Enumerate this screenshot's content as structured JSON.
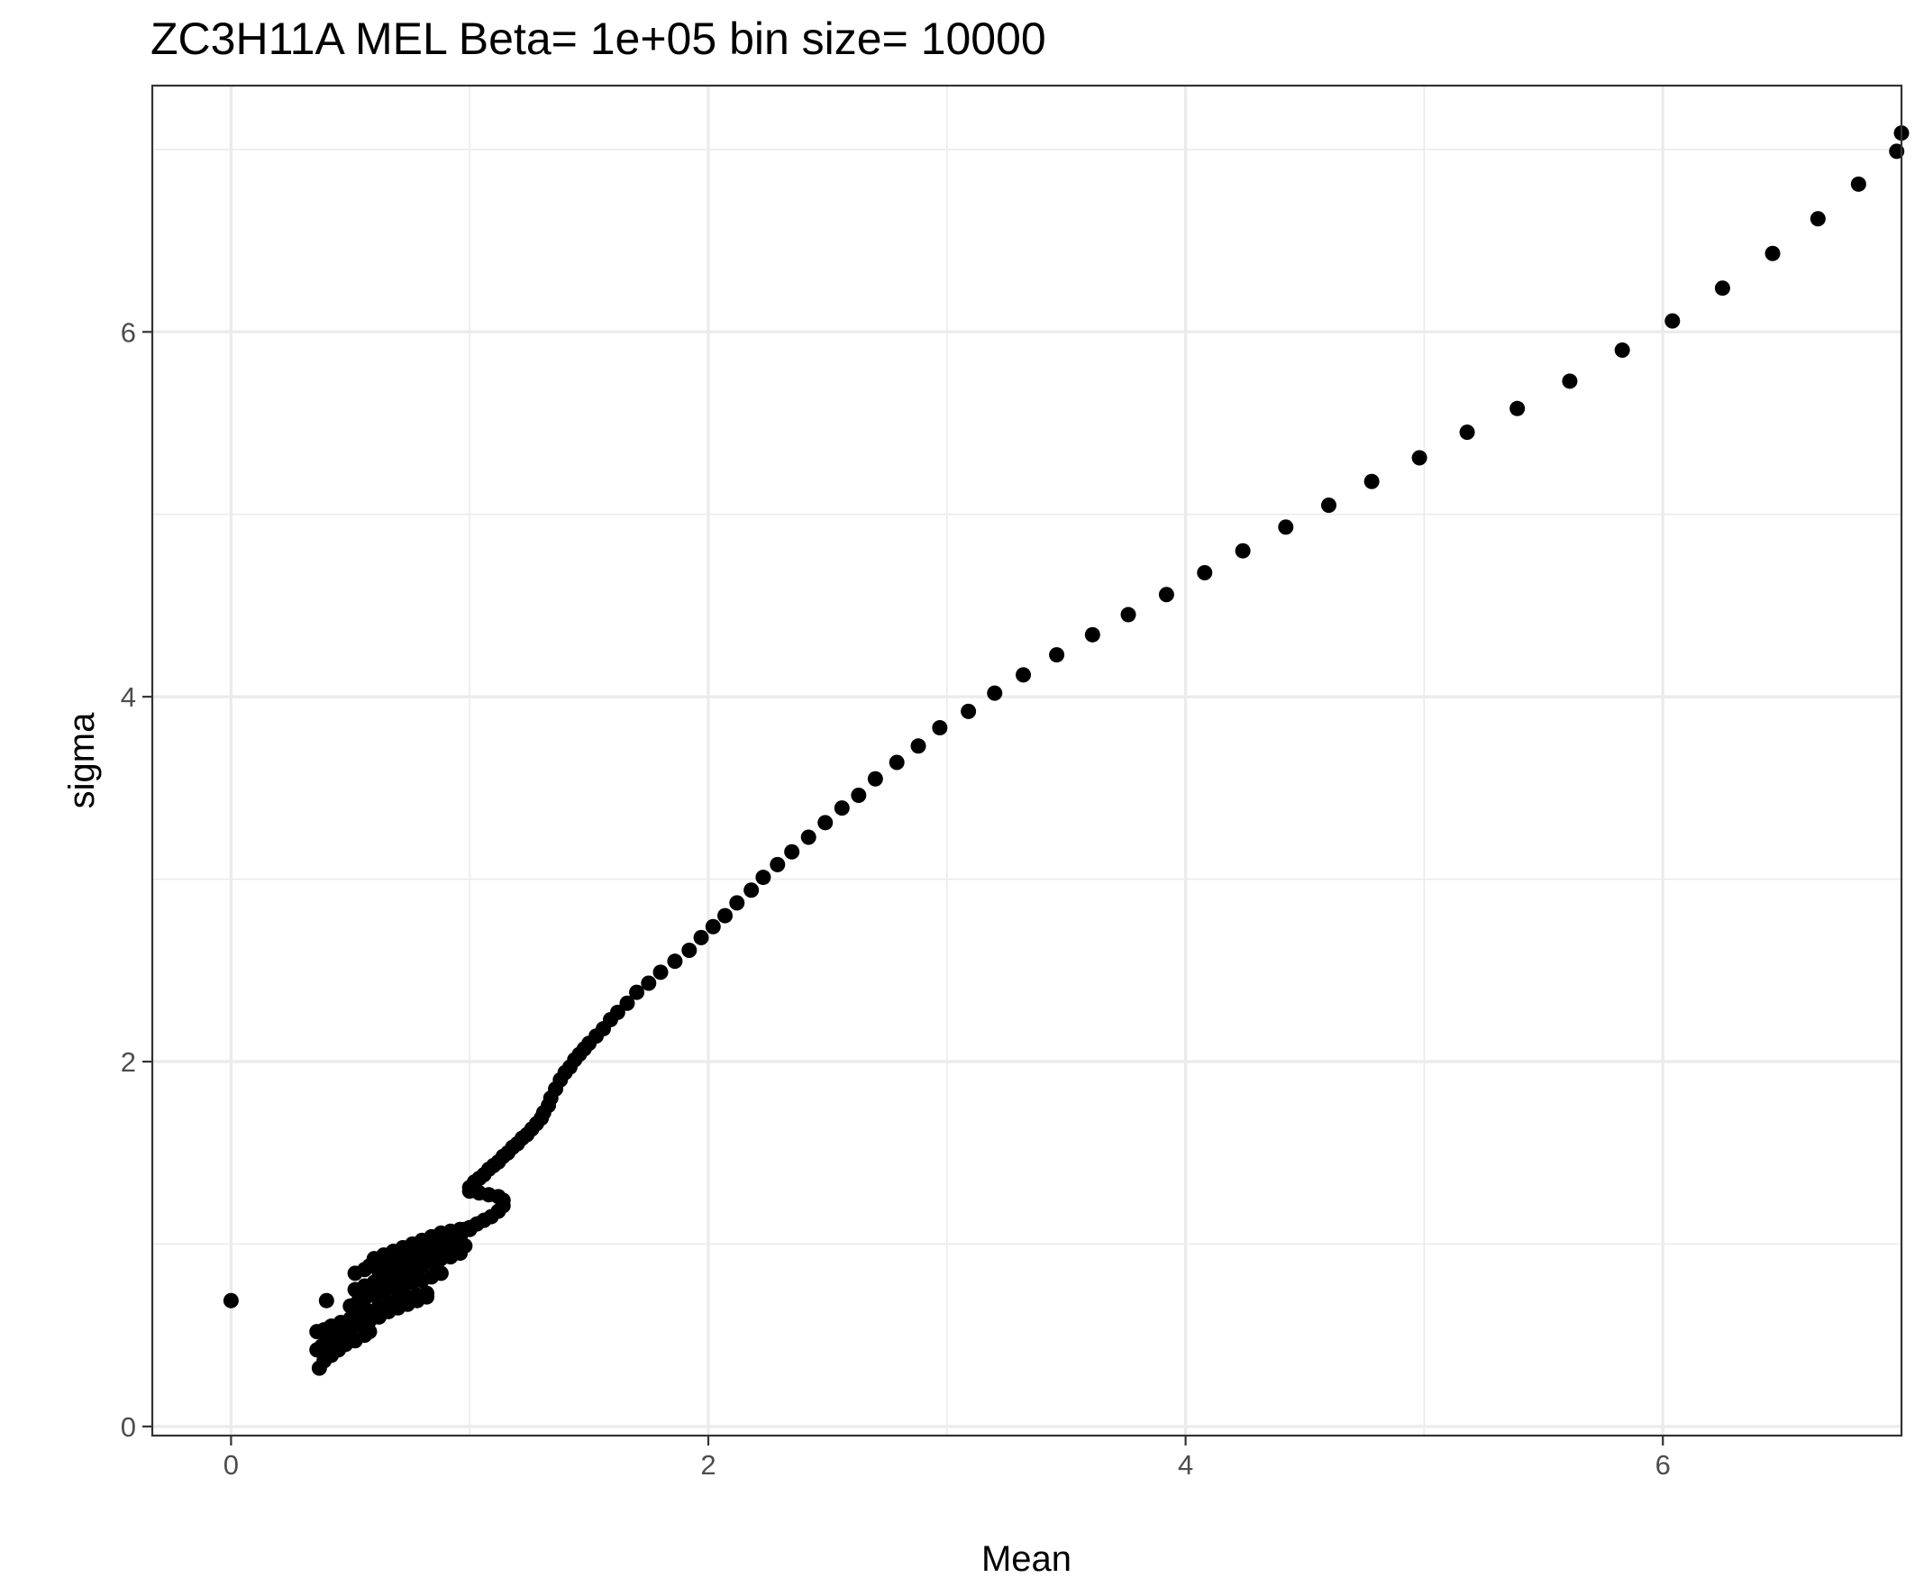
{
  "chart_data": {
    "type": "scatter",
    "title": "ZC3H11A MEL  Beta=  1e+05  bin size=  10000",
    "xlabel": "Mean",
    "ylabel": "sigma",
    "xlim": [
      -0.33,
      7.0
    ],
    "ylim": [
      -0.05,
      7.35
    ],
    "x_ticks": [
      0,
      2,
      4,
      6
    ],
    "y_ticks": [
      0,
      2,
      4,
      6
    ],
    "grid": true,
    "point_color": "#000000",
    "series": [
      {
        "points": [
          [
            0.0,
            0.69
          ],
          [
            0.4,
            0.69
          ],
          [
            0.37,
            0.32
          ],
          [
            0.39,
            0.36
          ],
          [
            0.42,
            0.39
          ],
          [
            0.45,
            0.42
          ],
          [
            0.48,
            0.45
          ],
          [
            0.52,
            0.47
          ],
          [
            0.56,
            0.5
          ],
          [
            0.58,
            0.52
          ],
          [
            0.36,
            0.42
          ],
          [
            0.38,
            0.44
          ],
          [
            0.4,
            0.46
          ],
          [
            0.43,
            0.48
          ],
          [
            0.46,
            0.5
          ],
          [
            0.5,
            0.53
          ],
          [
            0.54,
            0.56
          ],
          [
            0.58,
            0.58
          ],
          [
            0.36,
            0.52
          ],
          [
            0.39,
            0.53
          ],
          [
            0.42,
            0.55
          ],
          [
            0.46,
            0.57
          ],
          [
            0.5,
            0.59
          ],
          [
            0.54,
            0.61
          ],
          [
            0.58,
            0.63
          ],
          [
            0.62,
            0.66
          ],
          [
            0.66,
            0.68
          ],
          [
            0.7,
            0.7
          ],
          [
            0.74,
            0.71
          ],
          [
            0.78,
            0.72
          ],
          [
            0.82,
            0.73
          ],
          [
            0.5,
            0.66
          ],
          [
            0.53,
            0.68
          ],
          [
            0.56,
            0.7
          ],
          [
            0.6,
            0.72
          ],
          [
            0.64,
            0.74
          ],
          [
            0.68,
            0.76
          ],
          [
            0.72,
            0.77
          ],
          [
            0.76,
            0.79
          ],
          [
            0.8,
            0.8
          ],
          [
            0.84,
            0.82
          ],
          [
            0.88,
            0.84
          ],
          [
            0.52,
            0.75
          ],
          [
            0.56,
            0.77
          ],
          [
            0.6,
            0.79
          ],
          [
            0.64,
            0.8
          ],
          [
            0.68,
            0.82
          ],
          [
            0.72,
            0.84
          ],
          [
            0.76,
            0.86
          ],
          [
            0.8,
            0.88
          ],
          [
            0.84,
            0.9
          ],
          [
            0.88,
            0.92
          ],
          [
            0.92,
            0.93
          ],
          [
            0.96,
            0.95
          ],
          [
            0.52,
            0.84
          ],
          [
            0.56,
            0.86
          ],
          [
            0.6,
            0.88
          ],
          [
            0.64,
            0.9
          ],
          [
            0.68,
            0.91
          ],
          [
            0.72,
            0.93
          ],
          [
            0.76,
            0.95
          ],
          [
            0.8,
            0.97
          ],
          [
            0.84,
            0.99
          ],
          [
            0.88,
            1.0
          ],
          [
            0.92,
            1.02
          ],
          [
            0.96,
            1.04
          ],
          [
            0.6,
            0.92
          ],
          [
            0.64,
            0.94
          ],
          [
            0.68,
            0.96
          ],
          [
            0.72,
            0.98
          ],
          [
            0.76,
            1.0
          ],
          [
            0.8,
            1.02
          ],
          [
            0.84,
            1.04
          ],
          [
            0.88,
            1.06
          ],
          [
            0.92,
            1.07
          ],
          [
            0.96,
            1.08
          ],
          [
            1.0,
            1.08
          ],
          [
            0.62,
            0.82
          ],
          [
            0.66,
            0.85
          ],
          [
            0.7,
            0.87
          ],
          [
            0.74,
            0.89
          ],
          [
            0.78,
            0.91
          ],
          [
            0.82,
            0.93
          ],
          [
            0.86,
            0.95
          ],
          [
            0.9,
            0.96
          ],
          [
            0.94,
            0.97
          ],
          [
            0.98,
            0.99
          ],
          [
            0.62,
            0.6
          ],
          [
            0.66,
            0.63
          ],
          [
            0.7,
            0.65
          ],
          [
            0.74,
            0.67
          ],
          [
            0.78,
            0.69
          ],
          [
            0.82,
            0.71
          ],
          [
            0.58,
            0.88
          ],
          [
            0.62,
            0.74
          ],
          [
            0.7,
            0.78
          ],
          [
            0.78,
            0.83
          ],
          [
            0.86,
            0.88
          ],
          [
            0.98,
            1.08
          ],
          [
            1.0,
            1.09
          ],
          [
            1.03,
            1.11
          ],
          [
            1.06,
            1.13
          ],
          [
            1.09,
            1.15
          ],
          [
            1.12,
            1.18
          ],
          [
            1.14,
            1.21
          ],
          [
            1.14,
            1.24
          ],
          [
            1.12,
            1.26
          ],
          [
            1.08,
            1.27
          ],
          [
            1.04,
            1.28
          ],
          [
            1.0,
            1.29
          ],
          [
            1.0,
            1.31
          ],
          [
            1.02,
            1.34
          ],
          [
            1.04,
            1.36
          ],
          [
            1.06,
            1.38
          ],
          [
            1.08,
            1.41
          ],
          [
            1.1,
            1.43
          ],
          [
            1.12,
            1.45
          ],
          [
            1.14,
            1.48
          ],
          [
            1.16,
            1.5
          ],
          [
            1.18,
            1.53
          ],
          [
            1.2,
            1.55
          ],
          [
            1.22,
            1.58
          ],
          [
            1.24,
            1.6
          ],
          [
            1.26,
            1.63
          ],
          [
            1.28,
            1.66
          ],
          [
            1.3,
            1.69
          ],
          [
            1.31,
            1.72
          ],
          [
            1.33,
            1.76
          ],
          [
            1.34,
            1.8
          ],
          [
            1.36,
            1.85
          ],
          [
            1.38,
            1.9
          ],
          [
            1.4,
            1.94
          ],
          [
            1.42,
            1.97
          ],
          [
            1.44,
            2.01
          ],
          [
            1.46,
            2.04
          ],
          [
            1.48,
            2.07
          ],
          [
            1.5,
            2.1
          ],
          [
            1.53,
            2.14
          ],
          [
            1.56,
            2.18
          ],
          [
            1.59,
            2.23
          ],
          [
            1.62,
            2.27
          ],
          [
            1.66,
            2.32
          ],
          [
            1.7,
            2.38
          ],
          [
            1.75,
            2.43
          ],
          [
            1.8,
            2.49
          ],
          [
            1.86,
            2.55
          ],
          [
            1.92,
            2.61
          ],
          [
            1.97,
            2.68
          ],
          [
            2.02,
            2.74
          ],
          [
            2.07,
            2.8
          ],
          [
            2.12,
            2.87
          ],
          [
            2.18,
            2.94
          ],
          [
            2.23,
            3.01
          ],
          [
            2.29,
            3.08
          ],
          [
            2.35,
            3.15
          ],
          [
            2.42,
            3.23
          ],
          [
            2.49,
            3.31
          ],
          [
            2.56,
            3.39
          ],
          [
            2.63,
            3.46
          ],
          [
            2.7,
            3.55
          ],
          [
            2.79,
            3.64
          ],
          [
            2.88,
            3.73
          ],
          [
            2.97,
            3.83
          ],
          [
            3.09,
            3.92
          ],
          [
            3.2,
            4.02
          ],
          [
            3.32,
            4.12
          ],
          [
            3.46,
            4.23
          ],
          [
            3.61,
            4.34
          ],
          [
            3.76,
            4.45
          ],
          [
            3.92,
            4.56
          ],
          [
            4.08,
            4.68
          ],
          [
            4.24,
            4.8
          ],
          [
            4.42,
            4.93
          ],
          [
            4.6,
            5.05
          ],
          [
            4.78,
            5.18
          ],
          [
            4.98,
            5.31
          ],
          [
            5.18,
            5.45
          ],
          [
            5.39,
            5.58
          ],
          [
            5.61,
            5.73
          ],
          [
            5.83,
            5.9
          ],
          [
            6.04,
            6.06
          ],
          [
            6.25,
            6.24
          ],
          [
            6.46,
            6.43
          ],
          [
            6.65,
            6.62
          ],
          [
            6.82,
            6.81
          ],
          [
            6.98,
            6.99
          ],
          [
            7.0,
            7.09
          ]
        ]
      }
    ]
  }
}
